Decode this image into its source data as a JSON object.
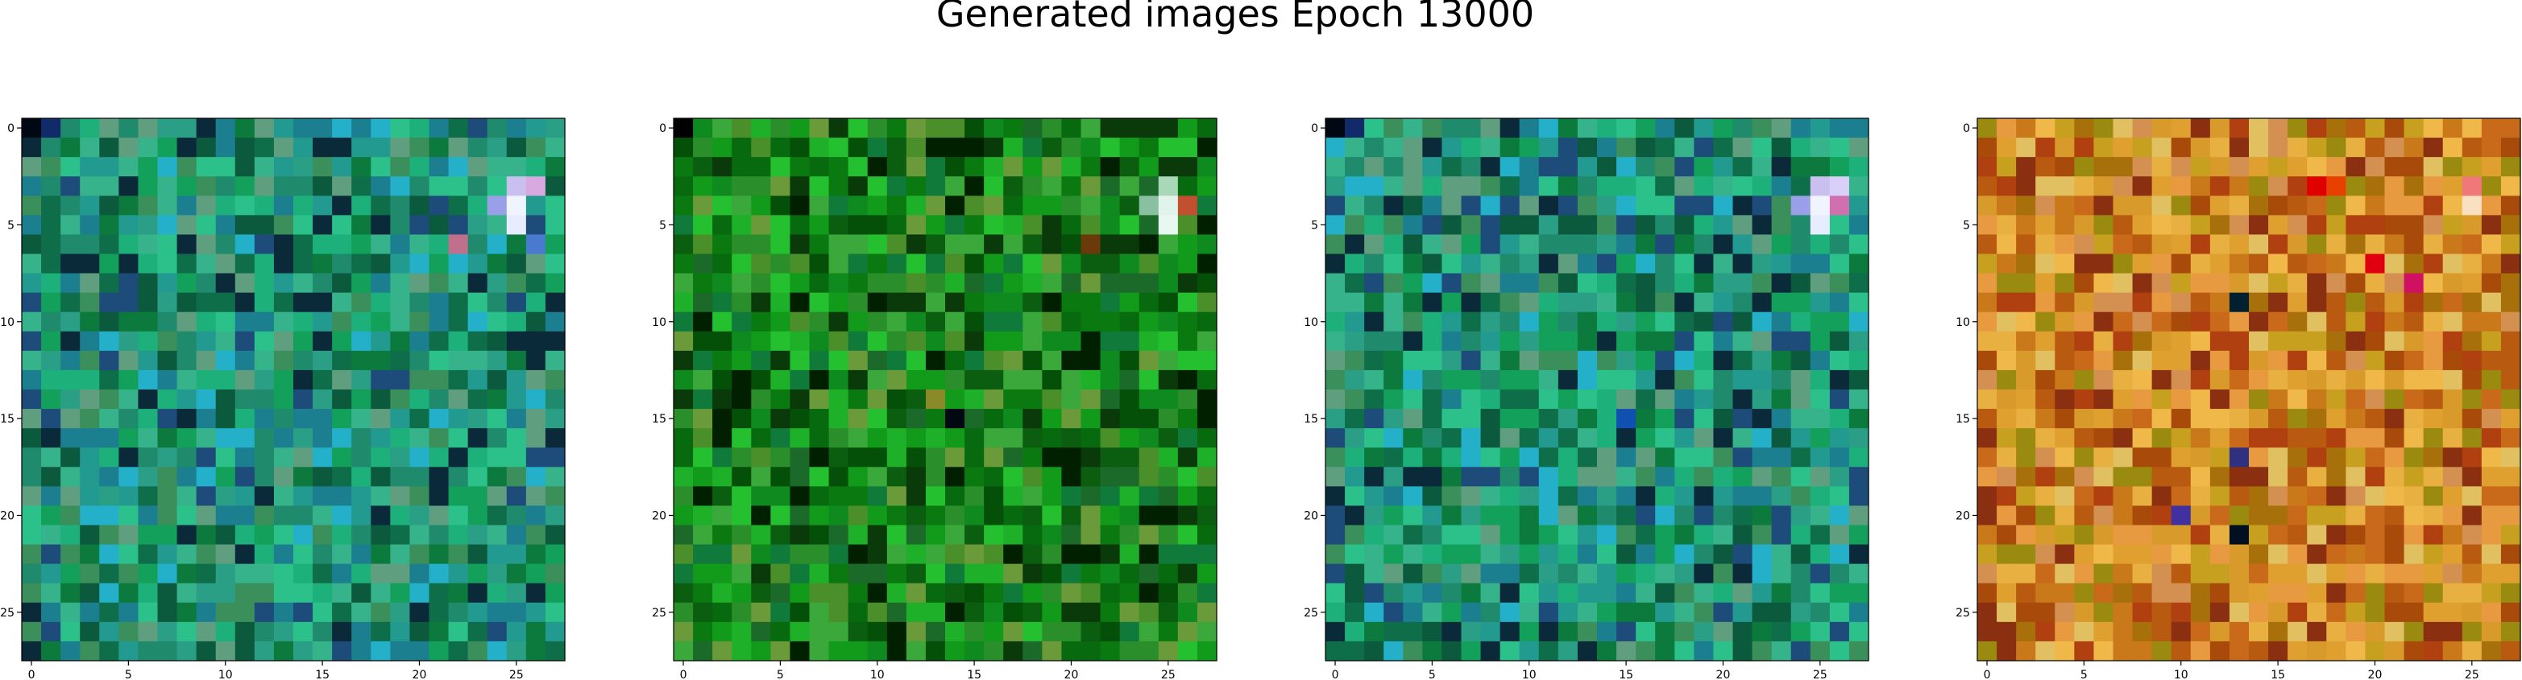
{
  "figure": {
    "title": "Generated images Epoch 13000"
  },
  "chart_data": [
    {
      "type": "heatmap",
      "panel": 1,
      "grid_size": [
        28,
        28
      ],
      "xlim": [
        -0.5,
        27.5
      ],
      "ylim": [
        27.5,
        -0.5
      ],
      "xticks": [
        0,
        5,
        10,
        15,
        20,
        25
      ],
      "yticks": [
        0,
        5,
        10,
        15,
        20,
        25
      ],
      "xtick_labels": [
        "0",
        "5",
        "10",
        "15",
        "20",
        "25"
      ],
      "ytick_labels": [
        "0",
        "5",
        "10",
        "15",
        "20",
        "25"
      ],
      "palette": {
        "name": "teal-green",
        "base": "#1a9a58",
        "colors": [
          "#0b7a3c",
          "#13a05a",
          "#1db07a",
          "#2a9f86",
          "#0f6e4a",
          "#239a8f",
          "#36b38a",
          "#1f8a6c",
          "#0c5a3d",
          "#2cc08a",
          "#1c7f8f",
          "#3b8f5a",
          "#0a2a3a",
          "#1d4c7a",
          "#24b0c8",
          "#5f9f7f"
        ],
        "highlights": [
          {
            "row": 3,
            "col": 25,
            "color": "#c9c0f0"
          },
          {
            "row": 3,
            "col": 26,
            "color": "#d8a8e0"
          },
          {
            "row": 4,
            "col": 24,
            "color": "#9aa0e8"
          },
          {
            "row": 4,
            "col": 25,
            "color": "#f0f4ff"
          },
          {
            "row": 5,
            "col": 25,
            "color": "#e8ecff"
          },
          {
            "row": 6,
            "col": 26,
            "color": "#4a7ad0"
          },
          {
            "row": 6,
            "col": 22,
            "color": "#c0708a"
          },
          {
            "row": 0,
            "col": 0,
            "color": "#000814"
          },
          {
            "row": 0,
            "col": 1,
            "color": "#102a6a"
          }
        ]
      }
    },
    {
      "type": "heatmap",
      "panel": 2,
      "grid_size": [
        28,
        28
      ],
      "xlim": [
        -0.5,
        27.5
      ],
      "ylim": [
        27.5,
        -0.5
      ],
      "xticks": [
        0,
        5,
        10,
        15,
        20,
        25
      ],
      "yticks": [
        0,
        5,
        10,
        15,
        20,
        25
      ],
      "xtick_labels": [
        "0",
        "5",
        "10",
        "15",
        "20",
        "25"
      ],
      "ytick_labels": [
        "0",
        "5",
        "10",
        "15",
        "20",
        "25"
      ],
      "palette": {
        "name": "green",
        "base": "#0a8a14",
        "colors": [
          "#0a7a10",
          "#129a1a",
          "#0b5e10",
          "#1fb02a",
          "#086a0e",
          "#2a8f2a",
          "#3aa83a",
          "#055008",
          "#0e8a1e",
          "#24c030",
          "#4a8f2a",
          "#0a3a0a",
          "#1c6a2a",
          "#6a9a3a",
          "#0f7a3a",
          "#002000"
        ],
        "highlights": [
          {
            "row": 3,
            "col": 25,
            "color": "#a8d8b8"
          },
          {
            "row": 4,
            "col": 24,
            "color": "#88c0a0"
          },
          {
            "row": 4,
            "col": 25,
            "color": "#e0f4ec"
          },
          {
            "row": 4,
            "col": 26,
            "color": "#c05030"
          },
          {
            "row": 5,
            "col": 25,
            "color": "#e8f8f0"
          },
          {
            "row": 0,
            "col": 0,
            "color": "#000000"
          },
          {
            "row": 14,
            "col": 13,
            "color": "#8a8a2a"
          },
          {
            "row": 15,
            "col": 14,
            "color": "#000814"
          },
          {
            "row": 6,
            "col": 21,
            "color": "#6a3a0a"
          }
        ]
      }
    },
    {
      "type": "heatmap",
      "panel": 3,
      "grid_size": [
        28,
        28
      ],
      "xlim": [
        -0.5,
        27.5
      ],
      "ylim": [
        27.5,
        -0.5
      ],
      "xticks": [
        0,
        5,
        10,
        15,
        20,
        25
      ],
      "yticks": [
        0,
        5,
        10,
        15,
        20,
        25
      ],
      "xtick_labels": [
        "0",
        "5",
        "10",
        "15",
        "20",
        "25"
      ],
      "ytick_labels": [
        "0",
        "5",
        "10",
        "15",
        "20",
        "25"
      ],
      "palette": {
        "name": "teal-green",
        "base": "#1a9a58",
        "colors": [
          "#0b7a3c",
          "#13a05a",
          "#1db07a",
          "#2a9f86",
          "#0f6e4a",
          "#239a8f",
          "#36b38a",
          "#1f8a6c",
          "#0c5a3d",
          "#2cc08a",
          "#1c7f8f",
          "#3b8f5a",
          "#0a2a3a",
          "#1d4c7a",
          "#24b0c8",
          "#5f9f7f"
        ],
        "highlights": [
          {
            "row": 3,
            "col": 25,
            "color": "#c9c0f0"
          },
          {
            "row": 3,
            "col": 26,
            "color": "#d8d0f8"
          },
          {
            "row": 4,
            "col": 24,
            "color": "#9aa0e8"
          },
          {
            "row": 4,
            "col": 25,
            "color": "#f0f4ff"
          },
          {
            "row": 5,
            "col": 25,
            "color": "#e8ecff"
          },
          {
            "row": 4,
            "col": 26,
            "color": "#d070b0"
          },
          {
            "row": 0,
            "col": 0,
            "color": "#000814"
          },
          {
            "row": 0,
            "col": 1,
            "color": "#102a6a"
          },
          {
            "row": 15,
            "col": 15,
            "color": "#1050b0"
          }
        ]
      }
    },
    {
      "type": "heatmap",
      "panel": 4,
      "grid_size": [
        28,
        28
      ],
      "xlim": [
        -0.5,
        27.5
      ],
      "ylim": [
        27.5,
        -0.5
      ],
      "xticks": [
        0,
        5,
        10,
        15,
        20,
        25
      ],
      "yticks": [
        0,
        5,
        10,
        15,
        20,
        25
      ],
      "xtick_labels": [
        "0",
        "5",
        "10",
        "15",
        "20",
        "25"
      ],
      "ytick_labels": [
        "0",
        "5",
        "10",
        "15",
        "20",
        "25"
      ],
      "palette": {
        "name": "orange-gold",
        "base": "#d48a1a",
        "colors": [
          "#c9781a",
          "#e0a030",
          "#b85a10",
          "#d89a2a",
          "#e8b040",
          "#a8700a",
          "#c86a1a",
          "#f0b848",
          "#b04010",
          "#d49050",
          "#9a8a10",
          "#e0c060",
          "#a84a0a",
          "#c8a020",
          "#8a3010",
          "#e89a40"
        ],
        "highlights": [
          {
            "row": 3,
            "col": 17,
            "color": "#e00000"
          },
          {
            "row": 3,
            "col": 18,
            "color": "#e84000"
          },
          {
            "row": 4,
            "col": 25,
            "color": "#f8e0c0"
          },
          {
            "row": 3,
            "col": 25,
            "color": "#f07878"
          },
          {
            "row": 7,
            "col": 20,
            "color": "#e00010"
          },
          {
            "row": 8,
            "col": 22,
            "color": "#d01060"
          },
          {
            "row": 9,
            "col": 13,
            "color": "#002030"
          },
          {
            "row": 17,
            "col": 13,
            "color": "#303080"
          },
          {
            "row": 20,
            "col": 10,
            "color": "#4030a0"
          },
          {
            "row": 21,
            "col": 13,
            "color": "#001020"
          }
        ]
      }
    }
  ]
}
